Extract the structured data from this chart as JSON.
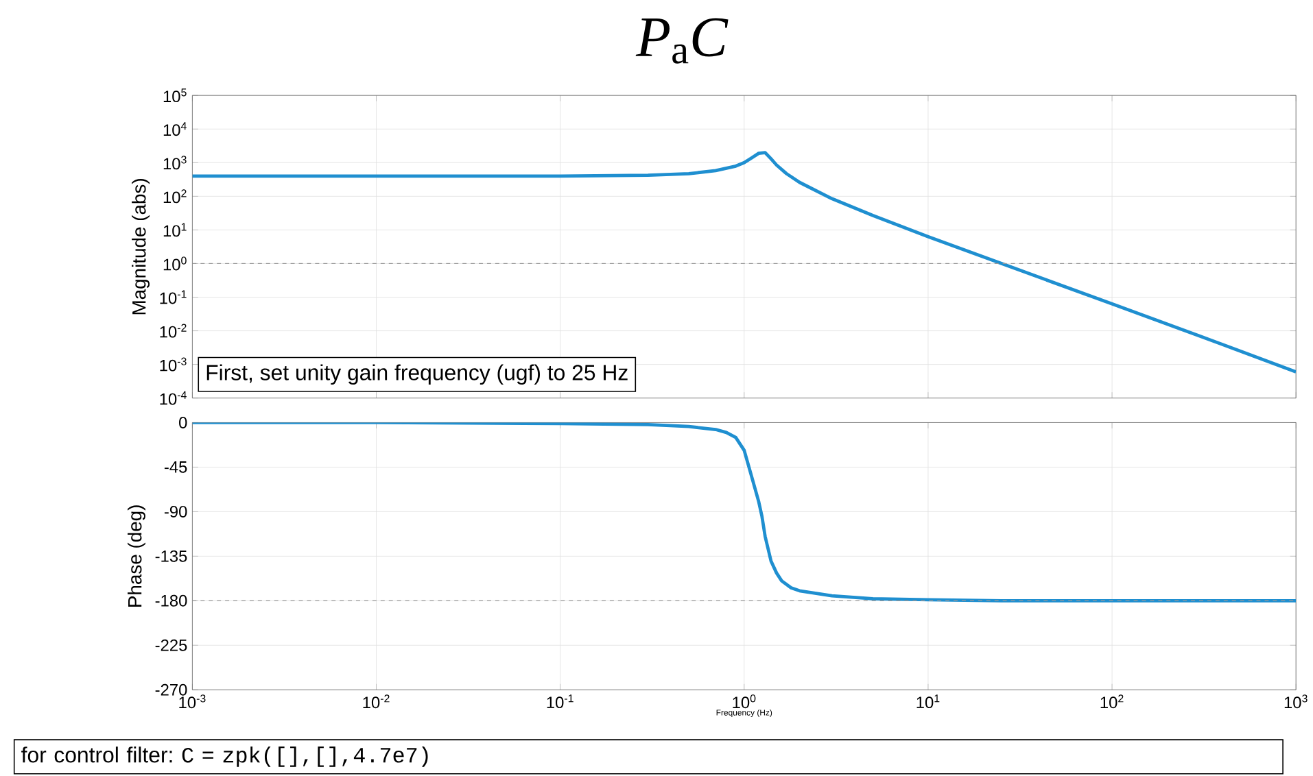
{
  "chart_data": [
    {
      "type": "line",
      "title": "*P*$_{a}$*C*",
      "ylabel": "Magnitude (abs)",
      "x": [
        0.001,
        0.01,
        0.1,
        0.3,
        0.5,
        0.7,
        0.9,
        1.0,
        1.1,
        1.2,
        1.3,
        1.4,
        1.5,
        1.7,
        2,
        3,
        5,
        10,
        30,
        100,
        300,
        1000
      ],
      "series": [
        {
          "color": "#1f8fd0",
          "values": [
            400,
            400,
            400,
            425,
            470,
            580,
            790,
            1000,
            1400,
            1900,
            2000,
            1300,
            850,
            470,
            260,
            85,
            27,
            6.3,
            0.7,
            0.063,
            0.007,
            0.0006
          ]
        }
      ],
      "xlim": [
        0.001,
        1000
      ],
      "ylim": [
        0.0001,
        100000
      ],
      "xticks": [
        {
          "value": 0.001,
          "label": null
        },
        {
          "value": 0.01,
          "label": null
        },
        {
          "value": 0.1,
          "label": null
        },
        {
          "value": 1,
          "label": null
        },
        {
          "value": 10,
          "label": null
        },
        {
          "value": 100,
          "label": null
        },
        {
          "value": 1000,
          "label": null
        }
      ],
      "yticks": [
        {
          "value": 0.0001,
          "label": "10$^{-4}$"
        },
        {
          "value": 0.001,
          "label": "10$^{-3}$"
        },
        {
          "value": 0.01,
          "label": "10$^{-2}$"
        },
        {
          "value": 0.1,
          "label": "10$^{-1}$"
        },
        {
          "value": 1,
          "label": "10$^{0}$"
        },
        {
          "value": 10,
          "label": "10$^{1}$"
        },
        {
          "value": 100,
          "label": "10$^{2}$"
        },
        {
          "value": 1000,
          "label": "10$^{3}$"
        },
        {
          "value": 10000,
          "label": "10$^{4}$"
        },
        {
          "value": 100000,
          "label": "10$^{5}$"
        }
      ],
      "log": "xy",
      "grid": true,
      "tick_labels": "y",
      "ref_lines": [
        {
          "axis": "y",
          "value": 1,
          "color": "#999999",
          "line_style": "dashed"
        }
      ],
      "annotations": [
        "First, set unity gain frequency (ugf) to 25 Hz"
      ]
    },
    {
      "type": "line",
      "xlabel": "Frequency (Hz)",
      "ylabel": "Phase (deg)",
      "x": [
        0.001,
        0.01,
        0.1,
        0.3,
        0.5,
        0.7,
        0.8,
        0.9,
        1.0,
        1.1,
        1.2,
        1.25,
        1.3,
        1.4,
        1.5,
        1.6,
        1.8,
        2,
        3,
        5,
        10,
        25,
        100,
        1000
      ],
      "series": [
        {
          "color": "#1f8fd0",
          "values": [
            0,
            0,
            -1,
            -2,
            -4,
            -7,
            -10,
            -15,
            -28,
            -55,
            -80,
            -95,
            -115,
            -140,
            -152,
            -160,
            -167,
            -170,
            -175,
            -178,
            -179,
            -180,
            -180,
            -180
          ]
        }
      ],
      "xlim": [
        0.001,
        1000
      ],
      "ylim": [
        -270,
        0
      ],
      "xticks": [
        {
          "value": 0.001,
          "label": "10$^{-3}$"
        },
        {
          "value": 0.01,
          "label": "10$^{-2}$"
        },
        {
          "value": 0.1,
          "label": "10$^{-1}$"
        },
        {
          "value": 1,
          "label": "10$^{0}$"
        },
        {
          "value": 10,
          "label": "10$^{1}$"
        },
        {
          "value": 100,
          "label": "10$^{2}$"
        },
        {
          "value": 1000,
          "label": "10$^{3}$"
        }
      ],
      "yticks": [
        0,
        -45,
        -90,
        -135,
        -180,
        -225,
        -270
      ],
      "log": "x",
      "grid": true,
      "ref_lines": [
        {
          "axis": "y",
          "value": -180,
          "color": "#999999",
          "line_style": "dashed"
        }
      ],
      "annotations": [
        "for control filter:",
        "C = zpk([],[],4.7e7)"
      ]
    }
  ]
}
